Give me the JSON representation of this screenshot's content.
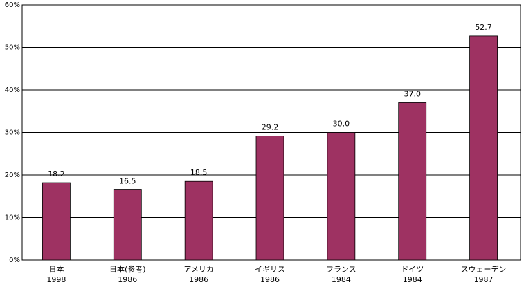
{
  "chart_data": {
    "type": "bar",
    "categories": [
      [
        "日本",
        "1998"
      ],
      [
        "日本(参考)",
        "1986"
      ],
      [
        "アメリカ",
        "1986"
      ],
      [
        "イギリス",
        "1986"
      ],
      [
        "フランス",
        "1984"
      ],
      [
        "ドイツ",
        "1984"
      ],
      [
        "スウェーデン",
        "1987"
      ]
    ],
    "values": [
      18.2,
      16.5,
      18.5,
      29.2,
      30.0,
      37.0,
      52.7
    ],
    "value_labels": [
      "18.2",
      "16.5",
      "18.5",
      "29.2",
      "30.0",
      "37.0",
      "52.7"
    ],
    "color": "#9e3262",
    "ylim": [
      0,
      60
    ],
    "yticks": [
      {
        "value": 0,
        "label": "0%"
      },
      {
        "value": 10,
        "label": "10%"
      },
      {
        "value": 20,
        "label": "20%"
      },
      {
        "value": 30,
        "label": "30%"
      },
      {
        "value": 40,
        "label": "40%"
      },
      {
        "value": 50,
        "label": "50%"
      },
      {
        "value": 60,
        "label": "60%"
      }
    ],
    "grid": true
  }
}
